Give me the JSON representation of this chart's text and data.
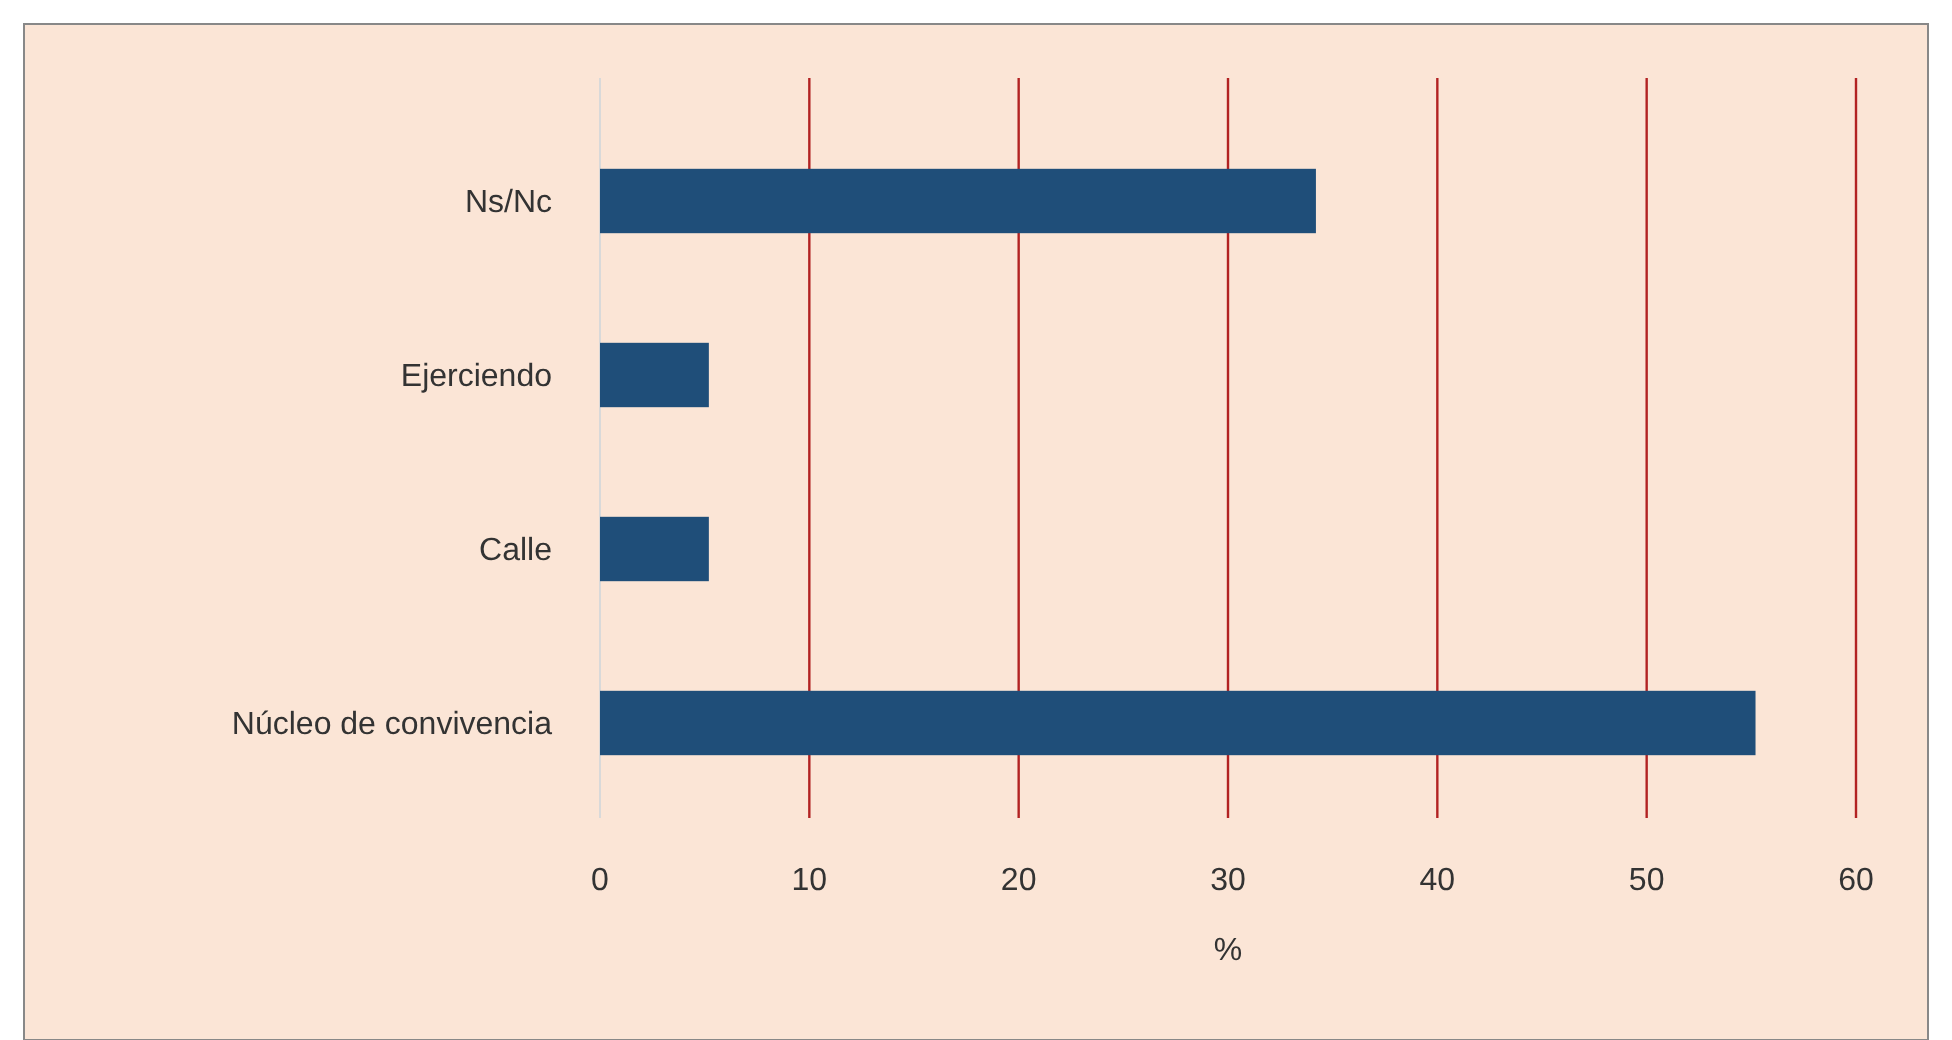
{
  "chart_data": {
    "type": "bar",
    "orientation": "horizontal",
    "categories": [
      "Ns/Nc",
      "Ejerciendo",
      "Calle",
      "Núcleo de convivencia"
    ],
    "values": [
      34.2,
      5.2,
      5.2,
      55.2
    ],
    "color": "#1f4e79",
    "xlabel": "%",
    "xlim": [
      0,
      60
    ],
    "xticks": [
      0,
      10,
      20,
      30,
      40,
      50,
      60
    ],
    "grid": "x"
  }
}
